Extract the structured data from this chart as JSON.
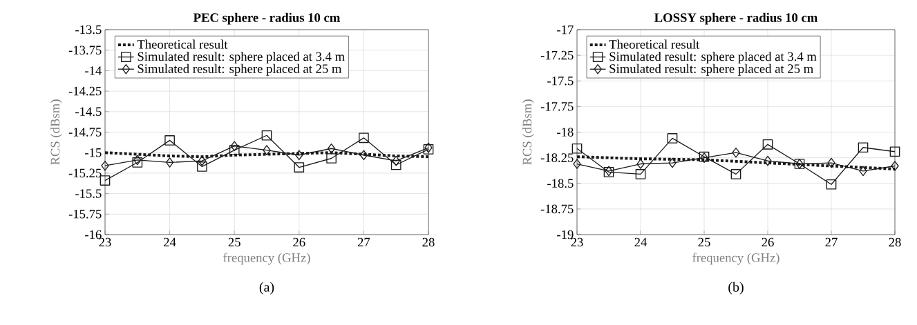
{
  "chart_data": [
    {
      "type": "line",
      "title": "PEC sphere - radius 10 cm",
      "xlabel": "frequency (GHz)",
      "ylabel": "RCS (dBsm)",
      "annotations": [
        "(a)"
      ],
      "x": [
        23,
        23.5,
        24,
        24.5,
        25,
        25.5,
        26,
        26.5,
        27,
        27.5,
        28
      ],
      "xlim": [
        23,
        28
      ],
      "xticks": [
        23,
        24,
        25,
        26,
        27,
        28
      ],
      "ylim": [
        -16,
        -13.5
      ],
      "yticks": [
        -16,
        -15.75,
        -15.5,
        -15.25,
        -15,
        -14.75,
        -14.5,
        -14.25,
        -14,
        -13.75,
        -13.5
      ],
      "grid": true,
      "legend": "top left",
      "series": [
        {
          "name": "Theoretical result",
          "color": "#1a1a1a",
          "marker": "none",
          "line_style": "dotted",
          "values": [
            -15.0,
            -15.02,
            -15.04,
            -15.05,
            -15.03,
            -15.02,
            -15.01,
            -15.0,
            -15.02,
            -15.04,
            -15.05
          ]
        },
        {
          "name": "Simulated result: sphere placed at 3.4 m",
          "color": "#1a1a1a",
          "marker": "square",
          "line_style": "solid",
          "values": [
            -15.34,
            -15.12,
            -14.85,
            -15.17,
            -14.97,
            -14.79,
            -15.18,
            -15.07,
            -14.82,
            -15.15,
            -14.96
          ]
        },
        {
          "name": "Simulated result: sphere placed at 25 m",
          "color": "#1a1a1a",
          "marker": "diamond",
          "line_style": "solid",
          "values": [
            -15.16,
            -15.09,
            -15.12,
            -15.1,
            -14.92,
            -14.97,
            -15.03,
            -14.95,
            -15.03,
            -15.1,
            -14.94
          ]
        }
      ]
    },
    {
      "type": "line",
      "title": "LOSSY sphere - radius 10 cm",
      "xlabel": "frequency (GHz)",
      "ylabel": "RCS (dBsm)",
      "annotations": [
        "(b)"
      ],
      "x": [
        23,
        23.5,
        24,
        24.5,
        25,
        25.5,
        26,
        26.5,
        27,
        27.5,
        28
      ],
      "xlim": [
        23,
        28
      ],
      "xticks": [
        23,
        24,
        25,
        26,
        27,
        28
      ],
      "ylim": [
        -19,
        -17
      ],
      "yticks": [
        -19,
        -18.75,
        -18.5,
        -18.25,
        -18,
        -17.75,
        -17.5,
        -17.25,
        -17
      ],
      "grid": true,
      "legend": "top left",
      "series": [
        {
          "name": "Theoretical result",
          "color": "#1a1a1a",
          "marker": "none",
          "line_style": "dotted",
          "x": [
            23,
            24,
            25,
            26,
            27,
            28
          ],
          "values": [
            -18.24,
            -18.26,
            -18.27,
            -18.3,
            -18.33,
            -18.36
          ]
        },
        {
          "name": "Simulated result: sphere placed at 3.4 m",
          "color": "#1a1a1a",
          "marker": "square",
          "line_style": "solid",
          "values": [
            -18.16,
            -18.39,
            -18.41,
            -18.06,
            -18.24,
            -18.41,
            -18.12,
            -18.31,
            -18.51,
            -18.15,
            -18.19
          ]
        },
        {
          "name": "Simulated result: sphere placed at 25 m",
          "color": "#1a1a1a",
          "marker": "diamond",
          "line_style": "solid",
          "values": [
            -18.31,
            -18.38,
            -18.31,
            -18.3,
            -18.25,
            -18.2,
            -18.28,
            -18.31,
            -18.3,
            -18.38,
            -18.33
          ]
        }
      ]
    }
  ]
}
